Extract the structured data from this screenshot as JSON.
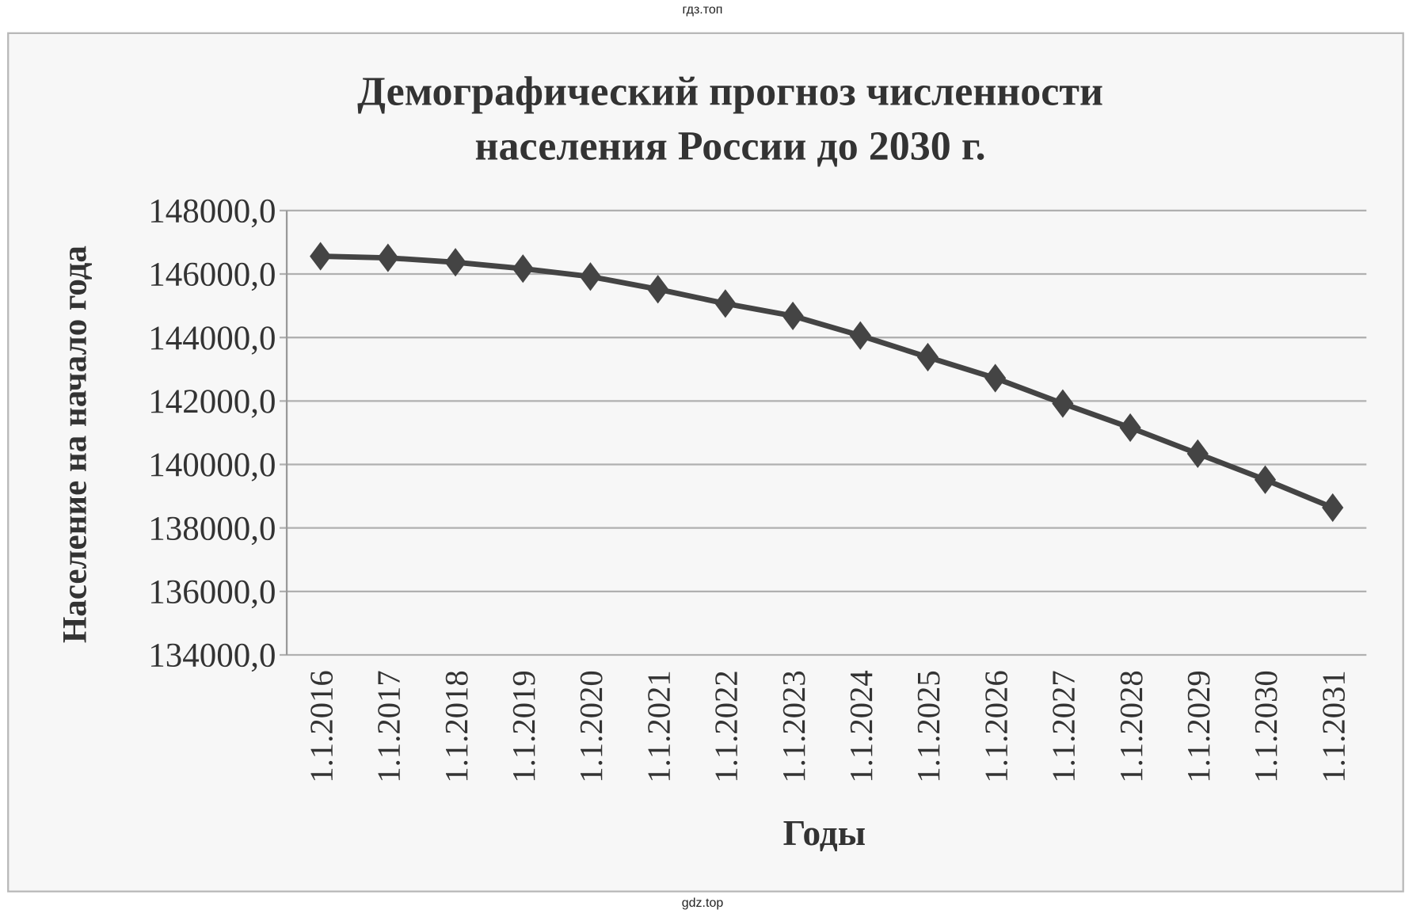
{
  "watermark_top": "гдз.топ",
  "watermark_bottom": "gdz.top",
  "chart_data": {
    "type": "line",
    "title_lines": [
      "Демографический прогноз численности",
      "населения России до 2030 г."
    ],
    "xlabel": "Годы",
    "ylabel": "Население на начало года",
    "categories": [
      "1.1.2016",
      "1.1.2017",
      "1.1.2018",
      "1.1.2019",
      "1.1.2020",
      "1.1.2021",
      "1.1.2022",
      "1.1.2023",
      "1.1.2024",
      "1.1.2025",
      "1.1.2026",
      "1.1.2027",
      "1.1.2028",
      "1.1.2029",
      "1.1.2030",
      "1.1.2031"
    ],
    "values": [
      146560,
      146510,
      146370,
      146170,
      145920,
      145520,
      145070,
      144680,
      144060,
      143380,
      142720,
      141920,
      141160,
      140340,
      139520,
      138640
    ],
    "ylim": [
      134000,
      148000
    ],
    "yticks": [
      134000,
      136000,
      138000,
      140000,
      142000,
      144000,
      146000,
      148000
    ],
    "ytick_labels": [
      "134000,0",
      "136000,0",
      "138000,0",
      "140000,0",
      "142000,0",
      "144000,0",
      "146000,0",
      "148000,0"
    ],
    "grid": true,
    "marker": "diamond",
    "legend": "none",
    "colors": {
      "line": "#444444",
      "grid": "#b0b0b0",
      "background": "#f7f7f7"
    }
  }
}
